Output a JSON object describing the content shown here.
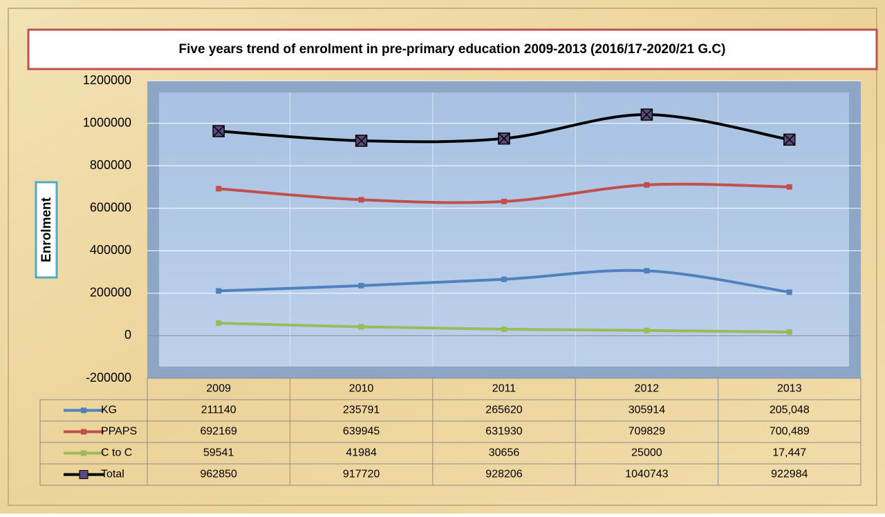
{
  "chart_data": {
    "type": "line",
    "title": "Five years trend of enrolment in pre-primary education 2009-2013 (2016/17-2020/21 G.C)",
    "y_label": "Enrolment",
    "categories": [
      "2009",
      "2010",
      "2011",
      "2012",
      "2013"
    ],
    "series": [
      {
        "name": "KG",
        "color": "#4f81bd",
        "values": [
          211140,
          235791,
          265620,
          305914,
          205048
        ],
        "value_labels": [
          "211140",
          "235791",
          "265620",
          "305914",
          "205,048"
        ]
      },
      {
        "name": "PPAPS",
        "color": "#c0504d",
        "values": [
          692169,
          639945,
          631930,
          709829,
          700489
        ],
        "value_labels": [
          "692169",
          "639945",
          "631930",
          "709829",
          "700,489"
        ]
      },
      {
        "name": "C to C",
        "color": "#9bbb59",
        "values": [
          59541,
          41984,
          30656,
          25000,
          17447
        ],
        "value_labels": [
          "59541",
          "41984",
          "30656",
          "25000",
          "17,447"
        ]
      },
      {
        "name": "Total",
        "color": "#000000",
        "values": [
          962850,
          917720,
          928206,
          1040743,
          922984
        ],
        "value_labels": [
          "962850",
          "917720",
          "928206",
          "1040743",
          "922984"
        ]
      }
    ],
    "ylim": [
      -200000,
      1200000
    ],
    "yticks": [
      -200000,
      0,
      200000,
      400000,
      600000,
      800000,
      1000000,
      1200000
    ],
    "grid": true
  }
}
